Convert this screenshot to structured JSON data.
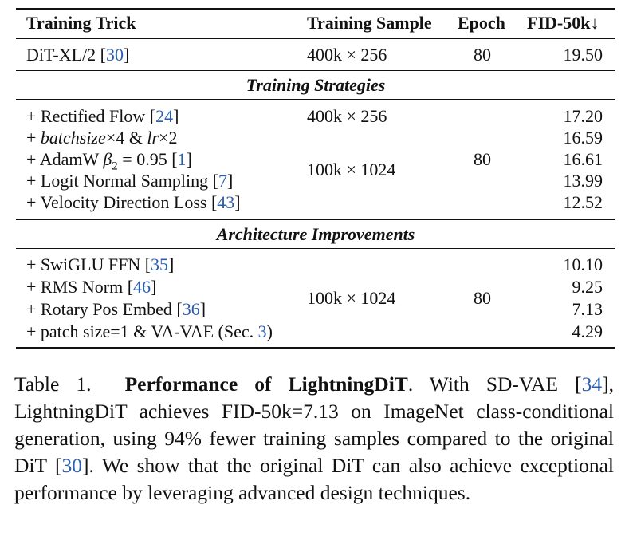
{
  "table": {
    "headers": {
      "trick": "Training Trick",
      "sample": "Training Sample",
      "epoch": "Epoch",
      "fid": "FID-50k↓"
    },
    "baseline": {
      "trick": "DiT-XL/2 [",
      "trick_ref": "30",
      "trick_close": "]",
      "sample": "400k × 256",
      "epoch": "80",
      "fid": "19.50"
    },
    "section1": {
      "title": "Training Strategies",
      "rows": [
        {
          "pre": "+ Rectified Flow [",
          "ref": "24",
          "post": "]",
          "fid": "17.20"
        },
        {
          "pre": "+ ",
          "ital": "batchsize",
          "mid": "×4 & ",
          "ital2": "lr",
          "post": "×2",
          "fid": "16.59"
        },
        {
          "pre": "+ AdamW ",
          "beta": "β",
          "sub": "2",
          "post": " = 0.95 [",
          "ref": "1",
          "post2": "]",
          "fid": "16.61"
        },
        {
          "pre": "+ Logit Normal Sampling [",
          "ref": "7",
          "post": "]",
          "fid": "13.99"
        },
        {
          "pre": "+ Velocity Direction Loss [",
          "ref": "43",
          "post": "]",
          "fid": "12.52"
        }
      ],
      "sample_top": "400k × 256",
      "sample_mid": "100k × 1024",
      "epoch": "80"
    },
    "section2": {
      "title": "Architecture Improvements",
      "rows": [
        {
          "pre": "+ SwiGLU FFN [",
          "ref": "35",
          "post": "]",
          "fid": "10.10"
        },
        {
          "pre": "+ RMS Norm [",
          "ref": "46",
          "post": "]",
          "fid": "9.25"
        },
        {
          "pre": "+ Rotary Pos Embed [",
          "ref": "36",
          "post": "]",
          "fid": "7.13"
        },
        {
          "pre": "+ patch size=1 & VA-VAE (Sec. ",
          "ref": "3",
          "post": ")",
          "fid": "4.29"
        }
      ],
      "sample": "100k × 1024",
      "epoch": "80"
    }
  },
  "caption": {
    "label": "Table 1.",
    "bold": "Performance of LightningDiT",
    "t1": ". With SD-VAE [",
    "r1": "34",
    "t2": "], LightningDiT achieves FID-50k=7.13 on ImageNet class-conditional generation, using 94% fewer training samples compared to the original DiT [",
    "r2": "30",
    "t3": "]. We show that the original DiT can also achieve exceptional performance by leveraging advanced design techniques."
  }
}
